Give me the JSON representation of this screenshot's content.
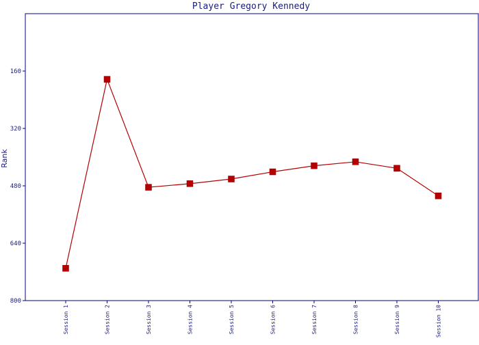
{
  "chart_data": {
    "type": "line",
    "title": "Player Gregory Kennedy",
    "xlabel": "",
    "ylabel": "Rank",
    "categories": [
      "Session 1",
      "Session 2",
      "Session 3",
      "Session 4",
      "Session 5",
      "Session 6",
      "Session 7",
      "Session 8",
      "Session 9",
      "Session 10"
    ],
    "series": [
      {
        "values": [
          710,
          183,
          484,
          474,
          461,
          441,
          424,
          413,
          431,
          508
        ]
      }
    ],
    "y_ticks": [
      160,
      320,
      480,
      640,
      800
    ],
    "ylim": [
      800,
      0
    ],
    "y_inverted": true,
    "grid": false,
    "line_color": "#b40000",
    "marker": "square",
    "axis_color": "#00008b",
    "text_color": "#1a1a7e"
  }
}
